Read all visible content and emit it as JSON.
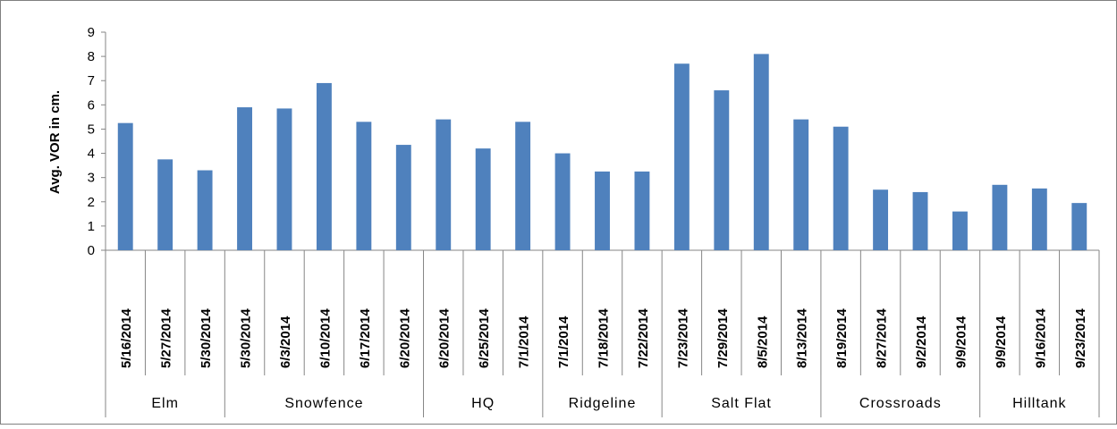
{
  "chart_data": {
    "type": "bar",
    "ylabel": "Avg. VOR in cm.",
    "ylim": [
      0,
      9
    ],
    "yticks": [
      0,
      1,
      2,
      3,
      4,
      5,
      6,
      7,
      8,
      9
    ],
    "grid": false,
    "bar_color": "#4F81BD",
    "categories": [
      "5/16/2014",
      "5/27/2014",
      "5/30/2014",
      "5/30/2014",
      "6/3/2014",
      "6/10/2014",
      "6/17/2014",
      "6/20/2014",
      "6/20/2014",
      "6/25/2014",
      "7/1/2014",
      "7/1/2014",
      "7/18/2014",
      "7/22/2014",
      "7/23/2014",
      "7/29/2014",
      "8/5/2014",
      "8/13/2014",
      "8/19/2014",
      "8/27/2014",
      "9/2/2014",
      "9/9/2014",
      "9/9/2014",
      "9/16/2014",
      "9/23/2014"
    ],
    "values": [
      5.25,
      3.75,
      3.3,
      5.9,
      5.85,
      6.9,
      5.3,
      4.35,
      5.4,
      4.2,
      5.3,
      4.0,
      3.25,
      3.25,
      7.7,
      6.6,
      8.1,
      5.4,
      5.1,
      2.5,
      2.4,
      1.6,
      2.7,
      2.55,
      1.95
    ],
    "groups": [
      {
        "name": "Elm",
        "count": 3
      },
      {
        "name": "Snowfence",
        "count": 5
      },
      {
        "name": "HQ",
        "count": 3
      },
      {
        "name": "Ridgeline",
        "count": 3
      },
      {
        "name": "Salt Flat",
        "count": 4
      },
      {
        "name": "Crossroads",
        "count": 4
      },
      {
        "name": "Hilltank",
        "count": 3
      }
    ]
  }
}
